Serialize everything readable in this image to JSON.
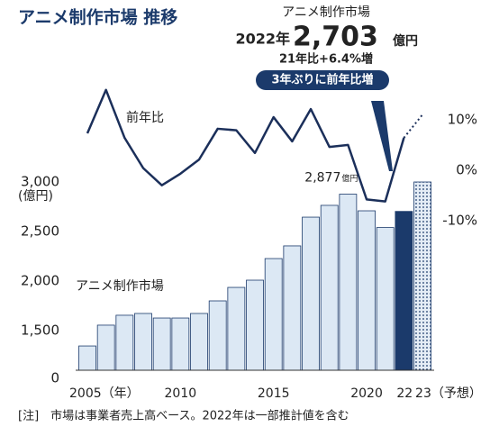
{
  "chart_data": {
    "type": "bar_line",
    "title": "アニメ制作市場 推移",
    "annotation": {
      "heading": "アニメ制作市場",
      "year": "2022年",
      "unit": "億円",
      "change": "21年比+6.4%増",
      "badge": "3年ぶりに前年比増"
    },
    "y_label": "(億円)",
    "note": "[注]　市場は事業者売上高ベース。2022年は一部推計値を含む",
    "categories": [
      "2005（年）",
      null,
      null,
      null,
      null,
      "2010",
      null,
      null,
      null,
      null,
      "2015",
      null,
      null,
      null,
      null,
      "2020",
      null,
      "22",
      "23（予想）"
    ],
    "series": [
      {
        "name": "アニメ制作市場",
        "type": "bar",
        "color": "#dce8f4",
        "highlight_color": "#1b3a6b",
        "forecast_index": 18,
        "values": [
          1345,
          1555,
          1655,
          1673,
          1627,
          1627,
          1673,
          1800,
          1936,
          2009,
          2227,
          2355,
          2645,
          2764,
          2877,
          2709,
          2540,
          2703,
          3000
        ],
        "value_labels": [
          null,
          null,
          null,
          null,
          null,
          null,
          null,
          null,
          null,
          null,
          null,
          null,
          null,
          null,
          "2,877",
          null,
          null,
          "2,703",
          null
        ],
        "value_label_unit": "億円",
        "highlight_index": 17
      },
      {
        "name": "前年比",
        "type": "line",
        "axis": "y2",
        "color": "#1b2f5a",
        "forecast_index": 18,
        "values": [
          7.3,
          15.9,
          6.4,
          0.4,
          -3.0,
          -0.7,
          2.1,
          8.2,
          7.9,
          3.4,
          10.5,
          5.7,
          12.1,
          4.6,
          5.0,
          -5.8,
          -6.2,
          6.4,
          11.0
        ]
      }
    ],
    "ylim": [
      0,
      3000
    ],
    "axis_break": [
      0,
      1100
    ],
    "yticks": [
      0,
      {
        "value": 1500,
        "label": "1,500"
      },
      {
        "value": 2000,
        "label": "2,000"
      },
      {
        "value": 2500,
        "label": "2,500"
      },
      {
        "value": 3000,
        "label": "3,000"
      }
    ],
    "y2lim": [
      -40,
      28
    ],
    "y2ticks": [
      {
        "value": 10,
        "label": "10%"
      },
      {
        "value": 0,
        "label": "0%"
      },
      {
        "value": -10,
        "label": "-10%"
      }
    ],
    "grid": false
  }
}
